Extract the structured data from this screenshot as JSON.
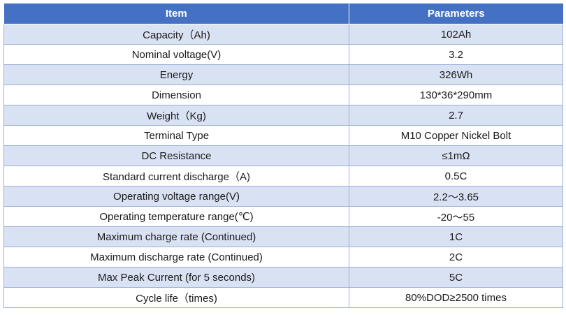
{
  "table": {
    "header": {
      "item": "Item",
      "parameters": "Parameters"
    },
    "rows": [
      {
        "item": "Capacity（Ah)",
        "value": "102Ah"
      },
      {
        "item": "Nominal voltage(V)",
        "value": "3.2"
      },
      {
        "item": "Energy",
        "value": "326Wh"
      },
      {
        "item": "Dimension",
        "value": "130*36*290mm"
      },
      {
        "item": "Weight（Kg)",
        "value": "2.7"
      },
      {
        "item": "Terminal Type",
        "value": "M10 Copper Nickel Bolt"
      },
      {
        "item": "DC Resistance",
        "value": "≤1mΩ"
      },
      {
        "item": "Standard current discharge（A)",
        "value": "0.5C"
      },
      {
        "item": "Operating voltage range(V)",
        "value": "2.2～3.65"
      },
      {
        "item": "Operating temperature range(℃)",
        "value": "-20～55"
      },
      {
        "item": "Maximum charge rate (Continued)",
        "value": "1C"
      },
      {
        "item": "Maximum discharge rate (Continued)",
        "value": "2C"
      },
      {
        "item": "Max Peak Current (for 5 seconds)",
        "value": "5C"
      },
      {
        "item": "Cycle life（times)",
        "value": "80%DOD≥2500 times"
      }
    ]
  },
  "colors": {
    "header_bg": "#4471c4",
    "header_text": "#ffffff",
    "shaded_row_bg": "#d9e2f3",
    "plain_row_bg": "#ffffff",
    "border": "#9db0d7"
  }
}
